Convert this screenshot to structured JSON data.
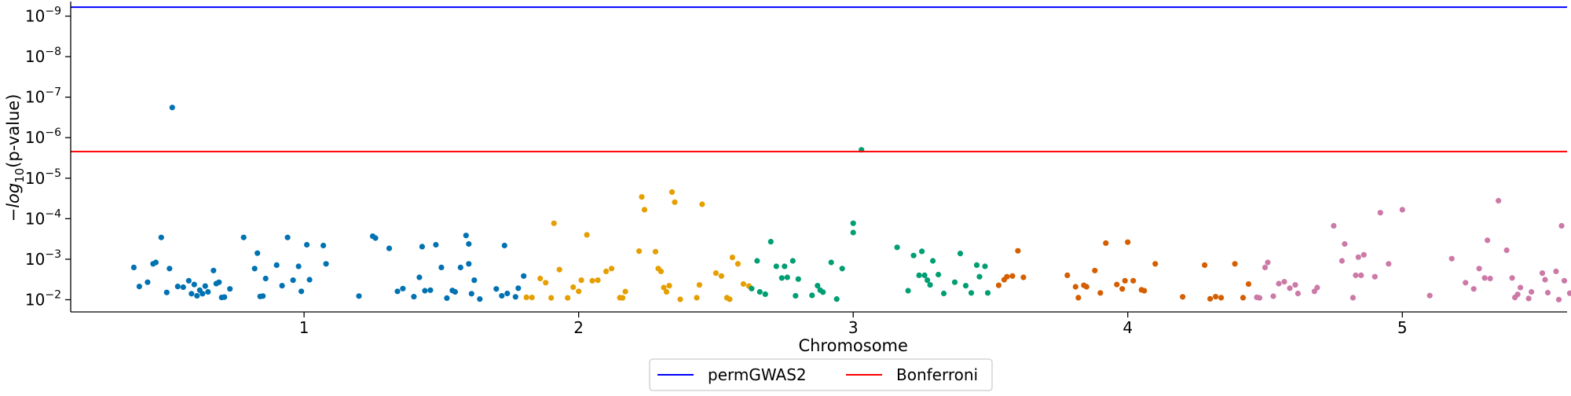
{
  "chart_data": {
    "type": "scatter",
    "title": "",
    "xlabel": "Chromosome",
    "ylabel_prefix": "−log",
    "ylabel_subscript": "10",
    "ylabel_suffix": "(p-value)",
    "y_scale": "log (inverted, p-value)",
    "ylim": [
      0.02,
      5e-10
    ],
    "y_ticks": [
      {
        "value": 1e-09,
        "base": "10",
        "exp": "−9"
      },
      {
        "value": 1e-08,
        "base": "10",
        "exp": "−8"
      },
      {
        "value": 1e-07,
        "base": "10",
        "exp": "−7"
      },
      {
        "value": 1e-06,
        "base": "10",
        "exp": "−6"
      },
      {
        "value": 1e-05,
        "base": "10",
        "exp": "−5"
      },
      {
        "value": 0.0001,
        "base": "10",
        "exp": "−4"
      },
      {
        "value": 0.001,
        "base": "10",
        "exp": "−3"
      },
      {
        "value": 0.01,
        "base": "10",
        "exp": "−2"
      }
    ],
    "x_ticks": [
      {
        "position": 1.0,
        "label": "1"
      },
      {
        "position": 2.0,
        "label": "2"
      },
      {
        "position": 3.0,
        "label": "3"
      },
      {
        "position": 4.0,
        "label": "4"
      },
      {
        "position": 5.0,
        "label": "5"
      }
    ],
    "xlim": [
      0.15,
      5.6
    ],
    "grid": false,
    "legend_placement": "bottom-center",
    "thresholds": [
      {
        "name": "permGWAS2",
        "value": 6e-10,
        "color": "#0000ff"
      },
      {
        "name": "Bonferroni",
        "value": 2.2e-06,
        "color": "#ff0000"
      }
    ],
    "series": [
      {
        "chromosome": "1",
        "color": "#0072b2",
        "points": [
          [
            0.38,
            0.0016
          ],
          [
            0.4,
            0.0047
          ],
          [
            0.43,
            0.0037
          ],
          [
            0.45,
            0.0013
          ],
          [
            0.46,
            0.0012
          ],
          [
            0.48,
            0.00029
          ],
          [
            0.5,
            0.0066
          ],
          [
            0.51,
            0.0017
          ],
          [
            0.52,
            1.8e-07
          ],
          [
            0.54,
            0.0047
          ],
          [
            0.56,
            0.0049
          ],
          [
            0.58,
            0.0034
          ],
          [
            0.59,
            0.0071
          ],
          [
            0.6,
            0.0042
          ],
          [
            0.61,
            0.008
          ],
          [
            0.62,
            0.0058
          ],
          [
            0.63,
            0.0071
          ],
          [
            0.64,
            0.0046
          ],
          [
            0.65,
            0.0064
          ],
          [
            0.67,
            0.0019
          ],
          [
            0.68,
            0.004
          ],
          [
            0.69,
            0.0037
          ],
          [
            0.7,
            0.0088
          ],
          [
            0.71,
            0.0086
          ],
          [
            0.73,
            0.0054
          ],
          [
            0.78,
            0.00029
          ],
          [
            0.82,
            0.0017
          ],
          [
            0.83,
            0.00071
          ],
          [
            0.84,
            0.0083
          ],
          [
            0.85,
            0.0081
          ],
          [
            0.86,
            0.003
          ],
          [
            0.9,
            0.0014
          ],
          [
            0.92,
            0.0045
          ],
          [
            0.94,
            0.00029
          ],
          [
            0.96,
            0.0033
          ],
          [
            0.98,
            0.0015
          ],
          [
            0.99,
            0.0062
          ],
          [
            1.01,
            0.00044
          ],
          [
            1.02,
            0.0032
          ],
          [
            1.07,
            0.00046
          ],
          [
            1.08,
            0.0013
          ],
          [
            1.2,
            0.0081
          ],
          [
            1.25,
            0.00027
          ],
          [
            1.26,
            0.0003
          ],
          [
            1.31,
            0.00054
          ],
          [
            1.34,
            0.0062
          ],
          [
            1.36,
            0.0053
          ],
          [
            1.4,
            0.0084
          ],
          [
            1.42,
            0.0028
          ],
          [
            1.43,
            0.00049
          ],
          [
            1.44,
            0.006
          ],
          [
            1.46,
            0.0058
          ],
          [
            1.48,
            0.00044
          ],
          [
            1.5,
            0.0016
          ],
          [
            1.52,
            0.0091
          ],
          [
            1.54,
            0.0059
          ],
          [
            1.55,
            0.0064
          ],
          [
            1.57,
            0.0016
          ],
          [
            1.59,
            0.00026
          ],
          [
            1.6,
            0.00042
          ],
          [
            1.6,
            0.0013
          ],
          [
            1.61,
            0.0071
          ],
          [
            1.62,
            0.0033
          ],
          [
            1.64,
            0.0096
          ]
        ]
      },
      {
        "chromosome": "1b",
        "color": "#0072b2",
        "points": [
          [
            1.7,
            0.0054
          ],
          [
            1.72,
            0.008
          ],
          [
            1.73,
            0.00046
          ],
          [
            1.74,
            0.007
          ],
          [
            1.77,
            0.0085
          ],
          [
            1.78,
            0.0052
          ],
          [
            1.8,
            0.0026
          ]
        ]
      },
      {
        "chromosome": "2",
        "color": "#e69f00",
        "points": [
          [
            1.81,
            0.0087
          ],
          [
            1.83,
            0.0088
          ],
          [
            1.86,
            0.003
          ],
          [
            1.88,
            0.0038
          ],
          [
            1.9,
            0.009
          ],
          [
            1.91,
            0.00013
          ],
          [
            1.93,
            0.0018
          ],
          [
            1.96,
            0.009
          ],
          [
            1.98,
            0.0049
          ],
          [
            2.0,
            0.0062
          ],
          [
            2.01,
            0.0033
          ],
          [
            2.03,
            0.00025
          ],
          [
            2.05,
            0.0034
          ],
          [
            2.07,
            0.0033
          ],
          [
            2.1,
            0.002
          ],
          [
            2.12,
            0.0017
          ],
          [
            2.15,
            0.0089
          ],
          [
            2.16,
            0.009
          ],
          [
            2.17,
            0.0063
          ],
          [
            2.22,
            0.00063
          ],
          [
            2.23,
            2.9e-05
          ],
          [
            2.24,
            6e-05
          ],
          [
            2.28,
            0.00065
          ],
          [
            2.29,
            0.0017
          ],
          [
            2.3,
            0.002
          ],
          [
            2.31,
            0.005
          ],
          [
            2.32,
            0.0064
          ],
          [
            2.33,
            0.0045
          ],
          [
            2.34,
            2.2e-05
          ],
          [
            2.35,
            3.9e-05
          ],
          [
            2.37,
            0.0098
          ],
          [
            2.43,
            0.0089
          ],
          [
            2.44,
            0.0043
          ],
          [
            2.45,
            4.4e-05
          ],
          [
            2.5,
            0.0022
          ],
          [
            2.52,
            0.0026
          ],
          [
            2.54,
            0.0089
          ],
          [
            2.55,
            0.0097
          ],
          [
            2.56,
            0.0009
          ],
          [
            2.58,
            0.0013
          ],
          [
            2.6,
            0.0041
          ],
          [
            2.62,
            0.0046
          ]
        ]
      },
      {
        "chromosome": "3",
        "color": "#009e73",
        "points": [
          [
            2.63,
            0.0053
          ],
          [
            2.65,
            0.0011
          ],
          [
            2.66,
            0.0064
          ],
          [
            2.68,
            0.0073
          ],
          [
            2.7,
            0.00037
          ],
          [
            2.72,
            0.0015
          ],
          [
            2.74,
            0.0029
          ],
          [
            2.75,
            0.0015
          ],
          [
            2.76,
            0.0028
          ],
          [
            2.78,
            0.0011
          ],
          [
            2.79,
            0.008
          ],
          [
            2.8,
            0.0031
          ],
          [
            2.85,
            0.0078
          ],
          [
            2.87,
            0.0045
          ],
          [
            2.88,
            0.0058
          ],
          [
            2.89,
            0.0065
          ],
          [
            2.92,
            0.0012
          ],
          [
            2.94,
            0.0096
          ],
          [
            2.96,
            0.0017
          ],
          [
            3.0,
            0.00013
          ],
          [
            3.0,
            0.00022
          ],
          [
            3.03,
            2e-06
          ],
          [
            3.16,
            0.00051
          ],
          [
            3.2,
            0.006
          ],
          [
            3.22,
            0.00081
          ],
          [
            3.24,
            0.0025
          ],
          [
            3.25,
            0.00064
          ],
          [
            3.26,
            0.0025
          ],
          [
            3.27,
            0.0033
          ],
          [
            3.28,
            0.0043
          ],
          [
            3.29,
            0.0011
          ],
          [
            3.31,
            0.0024
          ],
          [
            3.33,
            0.007
          ],
          [
            3.37,
            0.0037
          ],
          [
            3.39,
            0.00072
          ],
          [
            3.41,
            0.0045
          ],
          [
            3.43,
            0.0068
          ],
          [
            3.45,
            0.0014
          ],
          [
            3.46,
            0.0027
          ],
          [
            3.48,
            0.0015
          ],
          [
            3.49,
            0.0068
          ]
        ]
      },
      {
        "chromosome": "4",
        "color": "#d55e00",
        "points": [
          [
            3.53,
            0.0044
          ],
          [
            3.55,
            0.0032
          ],
          [
            3.56,
            0.0027
          ],
          [
            3.58,
            0.0026
          ],
          [
            3.6,
            0.00062
          ],
          [
            3.62,
            0.0028
          ],
          [
            3.78,
            0.0025
          ],
          [
            3.81,
            0.0048
          ],
          [
            3.82,
            0.0089
          ],
          [
            3.84,
            0.0044
          ],
          [
            3.85,
            0.0048
          ],
          [
            3.88,
            0.0019
          ],
          [
            3.9,
            0.0068
          ],
          [
            3.92,
            0.0004
          ],
          [
            3.96,
            0.0042
          ],
          [
            3.98,
            0.0054
          ],
          [
            3.99,
            0.0034
          ],
          [
            4.0,
            0.00038
          ],
          [
            4.02,
            0.0034
          ],
          [
            4.05,
            0.0057
          ],
          [
            4.06,
            0.006
          ],
          [
            4.1,
            0.0013
          ],
          [
            4.2,
            0.0085
          ],
          [
            4.28,
            0.0014
          ],
          [
            4.3,
            0.0095
          ],
          [
            4.32,
            0.0084
          ],
          [
            4.34,
            0.0089
          ],
          [
            4.39,
            0.0013
          ],
          [
            4.42,
            0.0089
          ],
          [
            4.44,
            0.0041
          ]
        ]
      },
      {
        "chromosome": "5",
        "color": "#cc79a7",
        "points": [
          [
            4.47,
            0.0087
          ],
          [
            4.48,
            0.009
          ],
          [
            4.5,
            0.0016
          ],
          [
            4.51,
            0.0012
          ],
          [
            4.53,
            0.0082
          ],
          [
            4.55,
            0.004
          ],
          [
            4.57,
            0.0036
          ],
          [
            4.59,
            0.0052
          ],
          [
            4.61,
            0.0043
          ],
          [
            4.62,
            0.007
          ],
          [
            4.68,
            0.0062
          ],
          [
            4.69,
            0.005
          ],
          [
            4.75,
            0.00015
          ],
          [
            4.78,
            0.0011
          ],
          [
            4.79,
            0.00042
          ],
          [
            4.82,
            0.0089
          ],
          [
            4.83,
            0.0025
          ],
          [
            4.84,
            0.00089
          ],
          [
            4.85,
            0.0025
          ],
          [
            4.86,
            0.00078
          ],
          [
            4.9,
            0.0027
          ],
          [
            4.92,
            7.1e-05
          ],
          [
            4.95,
            0.0013
          ],
          [
            5.0,
            6e-05
          ],
          [
            5.1,
            0.0079
          ],
          [
            5.18,
            0.00097
          ],
          [
            5.23,
            0.0038
          ],
          [
            5.26,
            0.0054
          ],
          [
            5.28,
            0.0017
          ],
          [
            5.3,
            0.0029
          ],
          [
            5.31,
            0.00034
          ],
          [
            5.32,
            0.003
          ],
          [
            5.35,
            3.6e-05
          ],
          [
            5.38,
            0.0006
          ],
          [
            5.4,
            0.0029
          ],
          [
            5.41,
            0.0088
          ],
          [
            5.42,
            0.0074
          ],
          [
            5.43,
            0.005
          ],
          [
            5.46,
            0.0093
          ],
          [
            5.47,
            0.0064
          ],
          [
            5.51,
            0.0022
          ],
          [
            5.52,
            0.0032
          ],
          [
            5.53,
            0.0067
          ],
          [
            5.56,
            0.002
          ],
          [
            5.57,
            0.0099
          ],
          [
            5.58,
            0.00015
          ],
          [
            5.59,
            0.0034
          ],
          [
            5.61,
            0.0069
          ],
          [
            5.63,
            0.00094
          ]
        ]
      }
    ]
  }
}
